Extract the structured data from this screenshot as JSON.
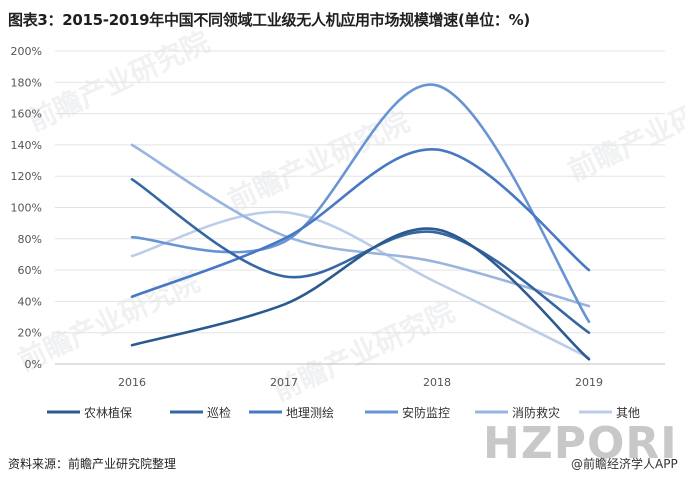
{
  "title": "图表3：2015-2019年中国不同领域工业级无人机应用市场规模增速(单位：%)",
  "source": "资料来源：前瞻产业研究院整理",
  "brand": "HZPORI",
  "brand_sub": "@前瞻经济学人APP",
  "watermark": "前瞻产业研究院",
  "chart_data": {
    "type": "line",
    "smooth": true,
    "title": "图表3：2015-2019年中国不同领域工业级无人机应用市场规模增速(单位：%)",
    "xlabel": "",
    "ylabel": "",
    "categories": [
      "2016",
      "2017",
      "2018",
      "2019"
    ],
    "ylim": [
      0,
      200
    ],
    "yticks": [
      0,
      20,
      40,
      60,
      80,
      100,
      120,
      140,
      160,
      180,
      200
    ],
    "ytick_suffix": "%",
    "grid": true,
    "legend_position": "bottom",
    "series": [
      {
        "name": "农林植保",
        "values": [
          12,
          38,
          86,
          3
        ],
        "color": "#2c5a8f"
      },
      {
        "name": "巡检",
        "values": [
          118,
          56,
          84,
          20
        ],
        "color": "#3566a3"
      },
      {
        "name": "地理测绘",
        "values": [
          43,
          80,
          137,
          60
        ],
        "color": "#4778c4"
      },
      {
        "name": "安防监控",
        "values": [
          81,
          78,
          178,
          27
        ],
        "color": "#6994d4"
      },
      {
        "name": "消防救灾",
        "values": [
          140,
          82,
          65,
          37
        ],
        "color": "#9ab4e0"
      },
      {
        "name": "其他",
        "values": [
          69,
          97,
          52,
          4
        ],
        "color": "#bccde9"
      }
    ]
  }
}
